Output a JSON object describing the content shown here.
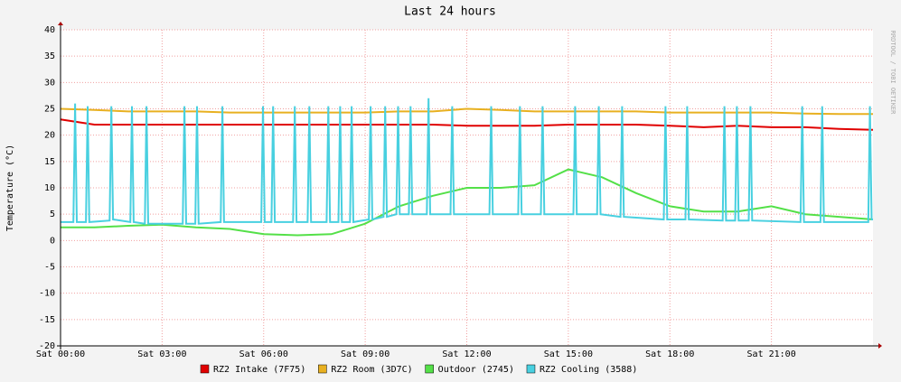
{
  "chart_data": {
    "type": "line",
    "title": "Last 24 hours",
    "y_label": "Temperature (°C)",
    "watermark": "RRDTOOL / TOBI OETIKER",
    "x": [
      0,
      1,
      2,
      3,
      4,
      5,
      6,
      7,
      8,
      9,
      10,
      11,
      12,
      13,
      14,
      15,
      16,
      17,
      18,
      19,
      20,
      21,
      22,
      23,
      24
    ],
    "xlim": [
      0,
      24
    ],
    "xticks": [
      {
        "value": 0,
        "label": "Sat 00:00"
      },
      {
        "value": 3,
        "label": "Sat 03:00"
      },
      {
        "value": 6,
        "label": "Sat 06:00"
      },
      {
        "value": 9,
        "label": "Sat 09:00"
      },
      {
        "value": 12,
        "label": "Sat 12:00"
      },
      {
        "value": 15,
        "label": "Sat 15:00"
      },
      {
        "value": 18,
        "label": "Sat 18:00"
      },
      {
        "value": 21,
        "label": "Sat 21:00"
      }
    ],
    "ylim": [
      -20,
      40
    ],
    "yticks": [
      -20,
      -15,
      -10,
      -5,
      0,
      5,
      10,
      15,
      20,
      25,
      30,
      35,
      40
    ],
    "grid": true,
    "series": [
      {
        "name": "RZ2 Intake (7F75)",
        "color": "#e00000",
        "values": [
          23,
          22,
          22,
          22,
          22,
          22,
          22,
          22,
          22,
          22,
          22,
          22,
          21.8,
          21.8,
          21.8,
          22,
          22,
          22,
          21.8,
          21.5,
          21.8,
          21.5,
          21.5,
          21.2,
          21
        ]
      },
      {
        "name": "RZ2 Room (3D7C)",
        "color": "#e8b020",
        "values": [
          25,
          24.8,
          24.5,
          24.5,
          24.5,
          24.3,
          24.3,
          24.3,
          24.3,
          24.3,
          24.5,
          24.5,
          25,
          24.8,
          24.5,
          24.5,
          24.5,
          24.5,
          24.3,
          24.3,
          24.3,
          24.3,
          24.1,
          24,
          24
        ]
      },
      {
        "name": "Outdoor (2745)",
        "color": "#54e048",
        "values": [
          2.5,
          2.5,
          2.8,
          3,
          2.5,
          2.2,
          1.2,
          1,
          1.2,
          3.2,
          6.5,
          8.5,
          10,
          10,
          10.5,
          13.5,
          12,
          9,
          6.5,
          5.5,
          5.5,
          6.5,
          5,
          4.5,
          4
        ]
      },
      {
        "name": "RZ2 Cooling (3588)",
        "color": "#48d0e0",
        "x": [
          0,
          0.38,
          0.43,
          0.48,
          0.75,
          0.8,
          0.85,
          1.45,
          1.5,
          1.55,
          2.06,
          2.11,
          2.16,
          2.49,
          2.54,
          2.59,
          3.61,
          3.66,
          3.71,
          3.98,
          4.03,
          4.08,
          4.73,
          4.78,
          4.83,
          5.93,
          5.98,
          6.03,
          6.23,
          6.28,
          6.33,
          6.87,
          6.92,
          6.97,
          7.3,
          7.35,
          7.4,
          7.86,
          7.91,
          7.96,
          8.21,
          8.26,
          8.31,
          8.55,
          8.6,
          8.65,
          9.11,
          9.16,
          9.21,
          9.54,
          9.59,
          9.64,
          9.92,
          9.97,
          10.02,
          10.29,
          10.34,
          10.39,
          10.82,
          10.87,
          10.92,
          11.52,
          11.57,
          11.62,
          12.67,
          12.72,
          12.77,
          13.52,
          13.57,
          13.62,
          14.19,
          14.24,
          14.29,
          15.15,
          15.2,
          15.25,
          15.85,
          15.9,
          15.95,
          16.54,
          16.59,
          16.64,
          17.82,
          17.87,
          17.92,
          18.46,
          18.51,
          18.56,
          19.56,
          19.61,
          19.66,
          19.93,
          19.98,
          20.03,
          20.33,
          20.38,
          20.43,
          21.86,
          21.91,
          21.96,
          22.45,
          22.5,
          22.55,
          23.86,
          23.91,
          23.96,
          24
        ],
        "values": [
          3.5,
          3.5,
          26,
          3.5,
          3.5,
          25.5,
          3.5,
          3.8,
          25.5,
          4,
          3.5,
          25.5,
          3.5,
          3.2,
          25.5,
          3.2,
          3.2,
          25.5,
          3.2,
          3.2,
          25.5,
          3.2,
          3.5,
          25.5,
          3.5,
          3.5,
          25.5,
          3.5,
          3.5,
          25.5,
          3.5,
          3.5,
          25.5,
          3.5,
          3.5,
          25.5,
          3.5,
          3.5,
          25.5,
          3.5,
          3.5,
          25.5,
          3.5,
          3.5,
          25.5,
          3.5,
          4,
          25.5,
          4,
          4.5,
          25.5,
          4.5,
          5,
          25.5,
          5,
          5,
          25.5,
          5,
          5,
          27,
          5,
          5,
          25.5,
          5,
          5,
          25.5,
          5,
          5,
          25.5,
          5,
          5,
          25.5,
          5,
          5,
          25.5,
          5,
          5,
          25.5,
          5,
          4.5,
          25.5,
          4.5,
          4,
          25.5,
          4,
          4,
          25.5,
          4,
          3.8,
          25.5,
          3.8,
          3.8,
          25.5,
          3.8,
          3.8,
          25.5,
          3.8,
          3.5,
          25.5,
          3.5,
          3.5,
          25.5,
          3.5,
          3.5,
          25.5,
          4,
          4
        ]
      }
    ]
  }
}
